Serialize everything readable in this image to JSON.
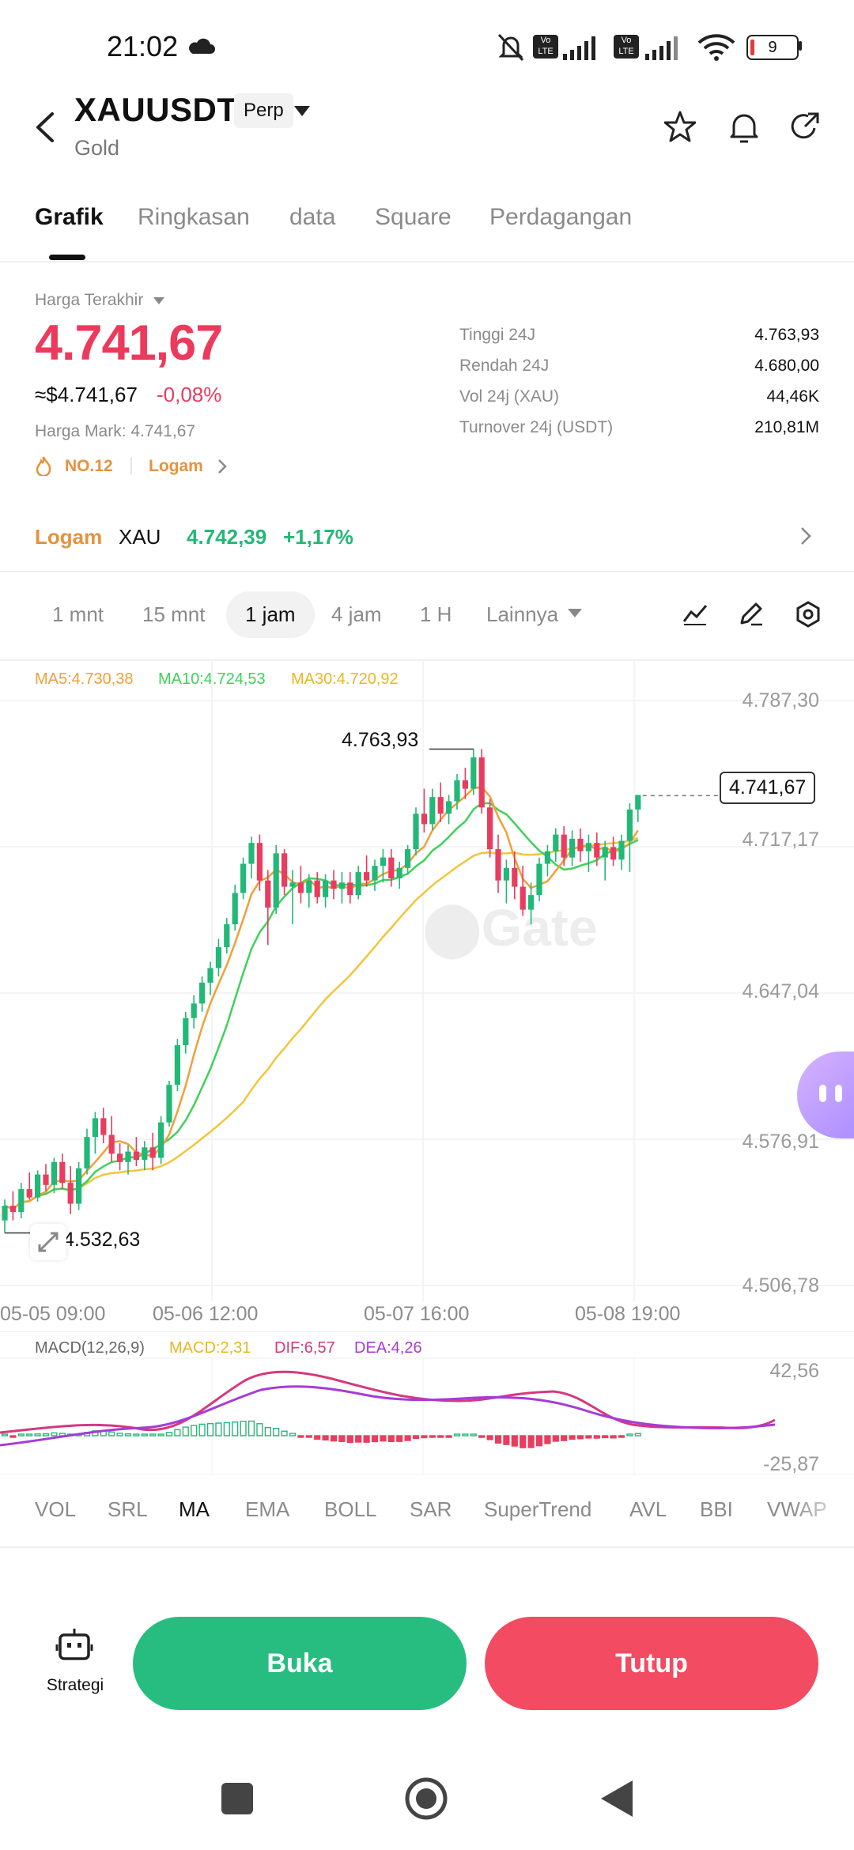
{
  "status_bar": {
    "time": "21:02",
    "battery": "9"
  },
  "header": {
    "title": "XAUUSDT",
    "badge": "Perp",
    "subtitle": "Gold"
  },
  "tabs": [
    "Grafik",
    "Ringkasan",
    "data",
    "Square",
    "Perdagangan"
  ],
  "price": {
    "label": "Harga Terakhir",
    "last": "4.741,67",
    "usd_equiv": "≈$4.741,67",
    "change": "-0,08%",
    "mark_price": "Harga Mark: 4.741,67",
    "rank": "NO.12",
    "category": "Logam"
  },
  "stats": [
    {
      "label": "Tinggi 24J",
      "value": "4.763,93"
    },
    {
      "label": "Rendah 24J",
      "value": "4.680,00"
    },
    {
      "label": "Vol 24j (XAU)",
      "value": "44,46K"
    },
    {
      "label": "Turnover 24j (USDT)",
      "value": "210,81M"
    }
  ],
  "metal_row": {
    "category": "Logam",
    "symbol": "XAU",
    "price": "4.742,39",
    "change": "+1,17%"
  },
  "timeframes": [
    "1 mnt",
    "15 mnt",
    "1 jam",
    "4 jam",
    "1 H",
    "Lainnya"
  ],
  "active_timeframe": "1 jam",
  "ma_legend": {
    "ma5": "MA5:4.730,38",
    "ma10": "MA10:4.724,53",
    "ma30": "MA30:4.720,92"
  },
  "chart_data": {
    "type": "candlestick",
    "y_axis_ticks": [
      "4.787,30",
      "4.717,17",
      "4.647,04",
      "4.576,91",
      "4.506,78"
    ],
    "x_axis_ticks": [
      "05-05 09:00",
      "05-06 12:00",
      "05-07 16:00",
      "05-08 19:00"
    ],
    "high_annotation": "4.763,93",
    "low_annotation": "4.532,63",
    "last_price_tag": "4.741,67",
    "candles": [
      [
        4538,
        4548,
        4532,
        4545
      ],
      [
        4545,
        4552,
        4538,
        4542
      ],
      [
        4542,
        4556,
        4539,
        4553
      ],
      [
        4553,
        4561,
        4548,
        4549
      ],
      [
        4549,
        4562,
        4547,
        4560
      ],
      [
        4560,
        4565,
        4552,
        4555
      ],
      [
        4555,
        4568,
        4551,
        4566
      ],
      [
        4566,
        4570,
        4553,
        4556
      ],
      [
        4556,
        4564,
        4541,
        4546
      ],
      [
        4546,
        4566,
        4543,
        4563
      ],
      [
        4563,
        4582,
        4560,
        4578
      ],
      [
        4578,
        4590,
        4570,
        4587
      ],
      [
        4587,
        4592,
        4575,
        4579
      ],
      [
        4579,
        4588,
        4566,
        4570
      ],
      [
        4570,
        4575,
        4562,
        4566
      ],
      [
        4566,
        4574,
        4560,
        4571
      ],
      [
        4571,
        4578,
        4564,
        4567
      ],
      [
        4567,
        4576,
        4562,
        4573
      ],
      [
        4573,
        4580,
        4562,
        4568
      ],
      [
        4568,
        4588,
        4565,
        4585
      ],
      [
        4585,
        4605,
        4583,
        4603
      ],
      [
        4603,
        4625,
        4600,
        4622
      ],
      [
        4622,
        4638,
        4618,
        4635
      ],
      [
        4635,
        4646,
        4630,
        4642
      ],
      [
        4642,
        4655,
        4638,
        4652
      ],
      [
        4652,
        4662,
        4646,
        4659
      ],
      [
        4659,
        4673,
        4655,
        4669
      ],
      [
        4669,
        4683,
        4666,
        4680
      ],
      [
        4680,
        4699,
        4677,
        4695
      ],
      [
        4695,
        4712,
        4692,
        4709
      ],
      [
        4709,
        4722,
        4702,
        4719
      ],
      [
        4719,
        4723,
        4696,
        4701
      ],
      [
        4701,
        4706,
        4670,
        4688
      ],
      [
        4688,
        4718,
        4685,
        4714
      ],
      [
        4714,
        4716,
        4694,
        4698
      ],
      [
        4698,
        4706,
        4680,
        4700
      ],
      [
        4700,
        4708,
        4690,
        4695
      ],
      [
        4695,
        4704,
        4688,
        4701
      ],
      [
        4701,
        4705,
        4690,
        4693
      ],
      [
        4693,
        4704,
        4688,
        4701
      ],
      [
        4701,
        4706,
        4692,
        4697
      ],
      [
        4697,
        4705,
        4690,
        4700
      ],
      [
        4700,
        4705,
        4690,
        4694
      ],
      [
        4694,
        4708,
        4692,
        4705
      ],
      [
        4705,
        4713,
        4698,
        4701
      ],
      [
        4701,
        4711,
        4696,
        4708
      ],
      [
        4708,
        4716,
        4700,
        4712
      ],
      [
        4712,
        4716,
        4698,
        4702
      ],
      [
        4702,
        4710,
        4697,
        4707
      ],
      [
        4707,
        4718,
        4704,
        4716
      ],
      [
        4716,
        4736,
        4713,
        4733
      ],
      [
        4733,
        4745,
        4724,
        4728
      ],
      [
        4728,
        4745,
        4725,
        4741
      ],
      [
        4741,
        4748,
        4729,
        4733
      ],
      [
        4733,
        4742,
        4728,
        4739
      ],
      [
        4739,
        4752,
        4735,
        4749
      ],
      [
        4749,
        4755,
        4740,
        4745
      ],
      [
        4745,
        4764,
        4742,
        4760
      ],
      [
        4760,
        4764,
        4733,
        4736
      ],
      [
        4736,
        4740,
        4712,
        4716
      ],
      [
        4716,
        4723,
        4695,
        4701
      ],
      [
        4701,
        4711,
        4690,
        4707
      ],
      [
        4707,
        4715,
        4692,
        4698
      ],
      [
        4698,
        4708,
        4684,
        4687
      ],
      [
        4687,
        4700,
        4680,
        4694
      ],
      [
        4694,
        4712,
        4691,
        4709
      ],
      [
        4709,
        4718,
        4703,
        4715
      ],
      [
        4715,
        4726,
        4710,
        4723
      ],
      [
        4723,
        4727,
        4708,
        4712
      ],
      [
        4712,
        4725,
        4708,
        4721
      ],
      [
        4721,
        4726,
        4710,
        4715
      ],
      [
        4715,
        4723,
        4705,
        4719
      ],
      [
        4719,
        4724,
        4708,
        4712
      ],
      [
        4712,
        4720,
        4701,
        4717
      ],
      [
        4717,
        4722,
        4708,
        4711
      ],
      [
        4711,
        4723,
        4706,
        4720
      ],
      [
        4720,
        4738,
        4705,
        4735
      ],
      [
        4735,
        4741,
        4729,
        4742
      ]
    ]
  },
  "macd": {
    "label": "MACD(12,26,9)",
    "macd": "MACD:2,31",
    "dif": "DIF:6,57",
    "dea": "DEA:4,26",
    "y_top": "42,56",
    "y_bottom": "-25,87"
  },
  "indicators": [
    "VOL",
    "SRL",
    "MA",
    "EMA",
    "BOLL",
    "SAR",
    "SuperTrend",
    "AVL",
    "BBI",
    "VWAP"
  ],
  "active_indicator": "MA",
  "bottom": {
    "strategy": "Strategi",
    "open": "Buka",
    "close": "Tutup"
  },
  "colors": {
    "up": "#22b878",
    "down": "#e93c5f",
    "ma5": "#f0a03a",
    "ma10": "#3fd15a",
    "ma30": "#f2c53d"
  }
}
